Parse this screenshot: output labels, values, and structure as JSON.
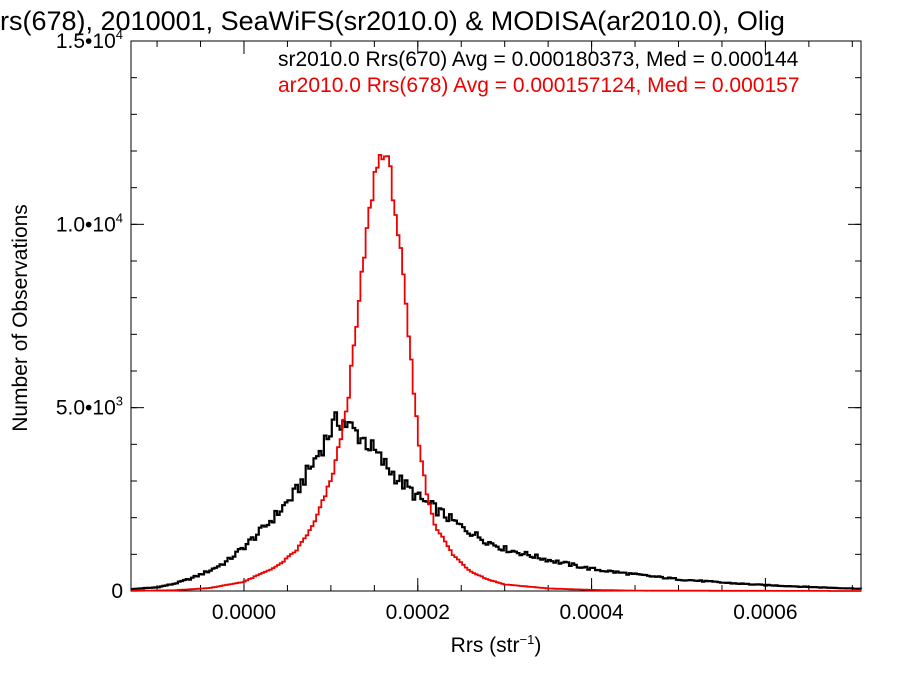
{
  "chart_data": {
    "type": "histogram-step",
    "title": "rs(678), 2010001, SeaWiFS(sr2010.0) & MODISA(ar2010.0), Olig",
    "xlabel_base": "Rrs (str",
    "xlabel_sup": "−1",
    "xlabel_close": ")",
    "ylabel": "Number of Observations",
    "xlim": [
      -0.00013,
      0.00071
    ],
    "ylim": [
      0,
      15000
    ],
    "x_ticks": [
      {
        "value": 0.0,
        "label": "0.0000"
      },
      {
        "value": 0.0002,
        "label": "0.0002"
      },
      {
        "value": 0.0004,
        "label": "0.0004"
      },
      {
        "value": 0.0006,
        "label": "0.0006"
      }
    ],
    "x_minor_step": 5e-05,
    "y_ticks": [
      {
        "value": 0,
        "mantissa": "0",
        "exp": ""
      },
      {
        "value": 5000,
        "mantissa": "5.0•10",
        "exp": "3"
      },
      {
        "value": 10000,
        "mantissa": "1.0•10",
        "exp": "4"
      },
      {
        "value": 15000,
        "mantissa": "1.5•10",
        "exp": "4"
      }
    ],
    "y_minor_step": 1000,
    "grid": false,
    "legend_position": "top-right",
    "series": [
      {
        "name": "sr2010.0 Rrs(670) Avg = 0.000180373, Med = 0.000144",
        "color": "#000000",
        "x": [
          -0.00013,
          -0.0001,
          -8e-05,
          -6e-05,
          -4e-05,
          -2e-05,
          0.0,
          2e-05,
          4e-05,
          6e-05,
          8e-05,
          0.0001,
          0.00011,
          0.00012,
          0.00013,
          0.00014,
          0.00015,
          0.00016,
          0.00018,
          0.0002,
          0.00022,
          0.00025,
          0.00028,
          0.0003,
          0.00035,
          0.0004,
          0.00045,
          0.0005,
          0.00055,
          0.0006,
          0.00065,
          0.00071
        ],
        "y": [
          50,
          100,
          200,
          350,
          550,
          800,
          1200,
          1650,
          2150,
          2700,
          3500,
          4400,
          4700,
          4500,
          4300,
          4100,
          3800,
          3500,
          3000,
          2550,
          2250,
          1750,
          1350,
          1150,
          850,
          600,
          450,
          320,
          230,
          160,
          110,
          60
        ]
      },
      {
        "name": "ar2010.0 Rrs(678) Avg = 0.000157124, Med = 0.000157",
        "color": "#ee0000",
        "x": [
          -0.00013,
          -8e-05,
          -4e-05,
          0.0,
          4e-05,
          6e-05,
          8e-05,
          0.0001,
          0.00011,
          0.00012,
          0.00013,
          0.00014,
          0.00015,
          0.00016,
          0.00017,
          0.00018,
          0.00019,
          0.0002,
          0.00021,
          0.00022,
          0.00024,
          0.00026,
          0.00028,
          0.0003,
          0.00035,
          0.0004,
          0.00045,
          0.00071
        ],
        "y": [
          5,
          20,
          80,
          250,
          700,
          1100,
          1800,
          3000,
          4000,
          5300,
          7300,
          9500,
          11300,
          12100,
          11200,
          9300,
          6800,
          4300,
          2700,
          1800,
          1000,
          550,
          320,
          180,
          70,
          30,
          10,
          0
        ]
      }
    ]
  }
}
